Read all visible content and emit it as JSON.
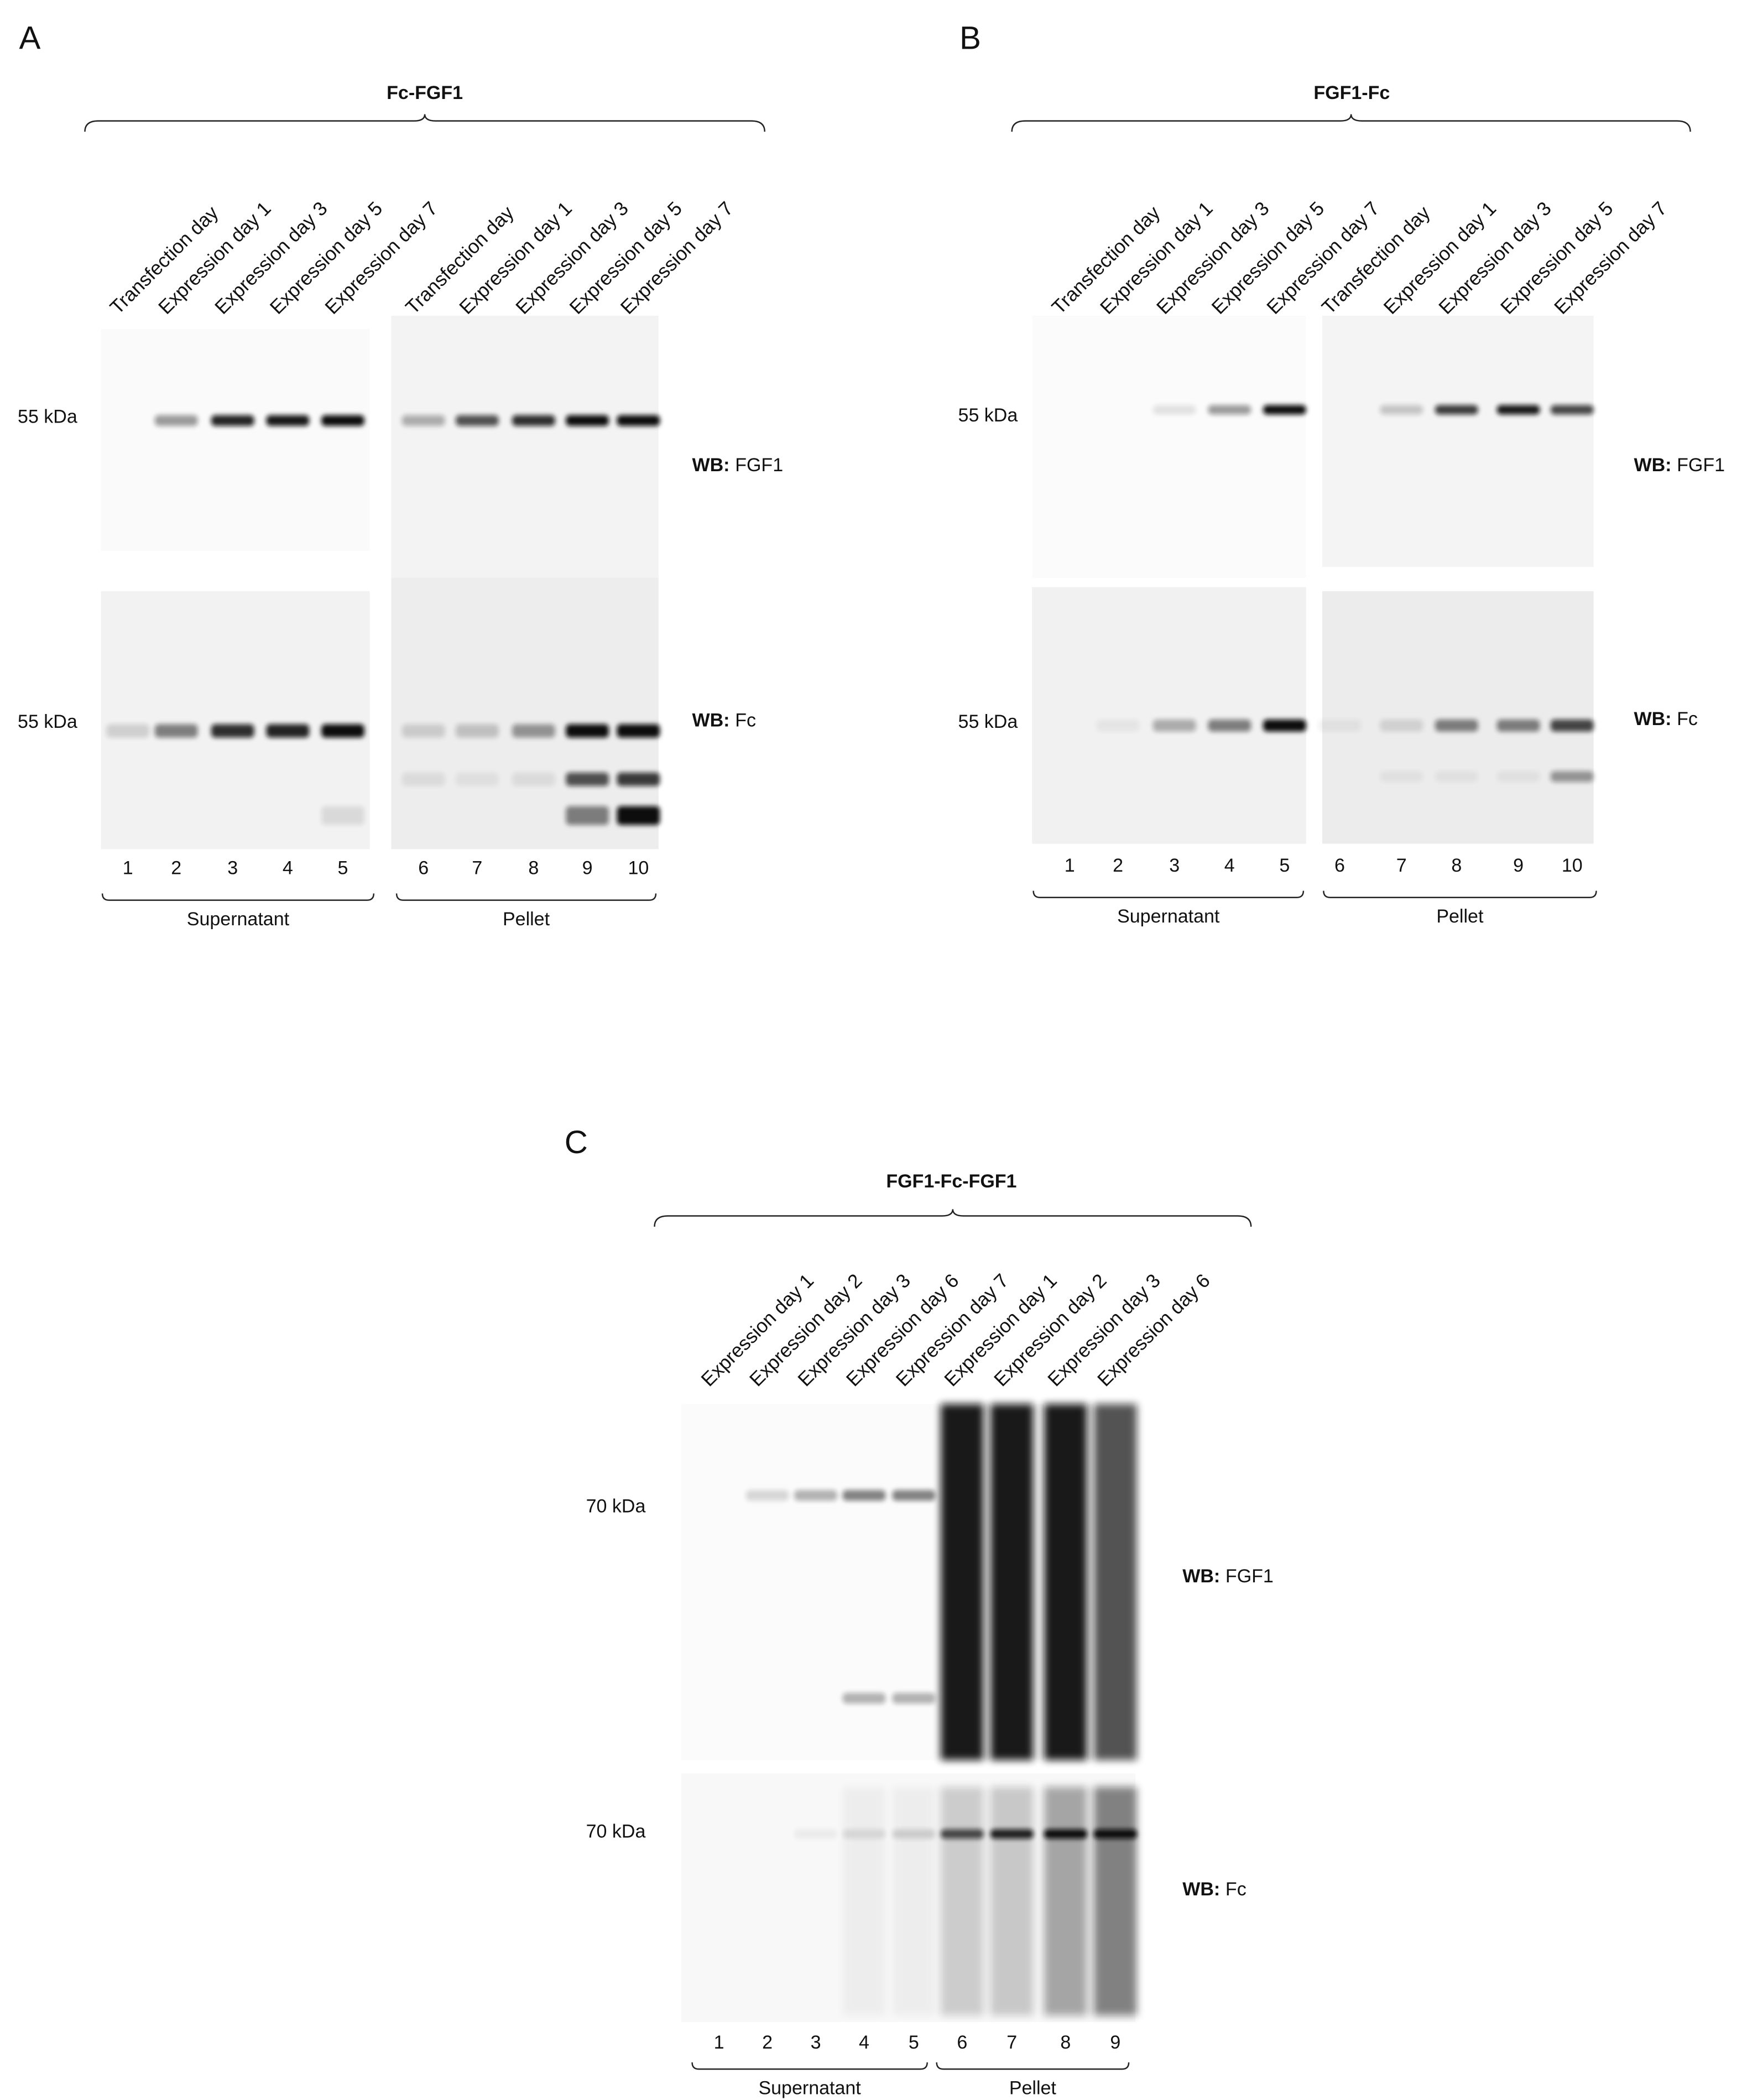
{
  "panels": [
    {
      "letter": "A",
      "construct": "Fc-FGF1",
      "lanes": [
        "Transfection day",
        "Expression day 1",
        "Expression day 3",
        "Expression day 5",
        "Expression day 7",
        "Transfection day",
        "Expression day 1",
        "Expression day 3",
        "Expression day 5",
        "Expression day 7"
      ],
      "blots": [
        {
          "marker": "55 kDa",
          "wb": "WB:",
          "target": "FGF1"
        },
        {
          "marker": "55 kDa",
          "wb": "WB:",
          "target": "Fc"
        }
      ],
      "lane_numbers": [
        1,
        2,
        3,
        4,
        5,
        6,
        7,
        8,
        9,
        10
      ],
      "groups": [
        "Supernatant",
        "Pellet"
      ]
    },
    {
      "letter": "B",
      "construct": "FGF1-Fc",
      "lanes": [
        "Transfection day",
        "Expression day 1",
        "Expression day 3",
        "Expression day 5",
        "Expression day 7",
        "Transfection day",
        "Expression day 1",
        "Expression day 3",
        "Expression day 5",
        "Expression day 7"
      ],
      "blots": [
        {
          "marker": "55 kDa",
          "wb": "WB:",
          "target": "FGF1"
        },
        {
          "marker": "55 kDa",
          "wb": "WB:",
          "target": "Fc"
        }
      ],
      "lane_numbers": [
        1,
        2,
        3,
        4,
        5,
        6,
        7,
        8,
        9,
        10
      ],
      "groups": [
        "Supernatant",
        "Pellet"
      ]
    },
    {
      "letter": "C",
      "construct": "FGF1-Fc-FGF1",
      "lanes": [
        "Expression day 1",
        "Expression day 2",
        "Expression day 3",
        "Expression day 6",
        "Expression day 7",
        "Expression day 1",
        "Expression day 2",
        "Expression day 3",
        "Expression day 6"
      ],
      "blots": [
        {
          "marker": "70 kDa",
          "wb": "WB:",
          "target": "FGF1"
        },
        {
          "marker": "70 kDa",
          "wb": "WB:",
          "target": "Fc"
        }
      ],
      "lane_numbers": [
        1,
        2,
        3,
        4,
        5,
        6,
        7,
        8,
        9
      ],
      "groups": [
        "Supernatant",
        "Pellet"
      ]
    }
  ]
}
